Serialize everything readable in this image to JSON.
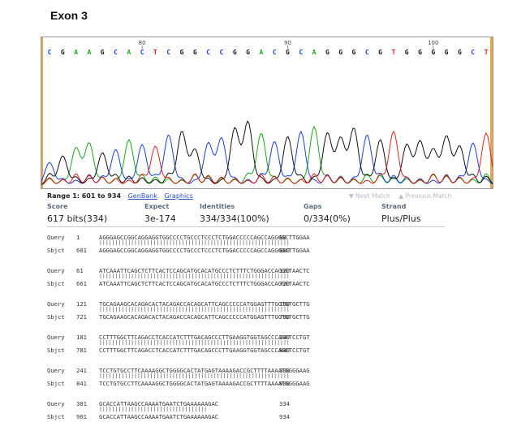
{
  "heading": "Exon 3",
  "trace": {
    "bases": "CGAAGCACTCGGCCGGACGCAGGGCGTGGGGGCT",
    "position_marks": [
      "80",
      "90",
      "100"
    ],
    "colors": {
      "A": "#1aa81a",
      "C": "#1b3fd6",
      "G": "#111111",
      "T": "#e0201a",
      "frame": "#e8a64c"
    }
  },
  "blast": {
    "range_label": "Range 1: 601 to 934",
    "genbank_link": "GenBank",
    "graphics_link": "Graphics",
    "next_match": "▼ Next Match",
    "previous_match": "▲ Previous Match",
    "headers": {
      "score": "Score",
      "expect": "Expect",
      "identities": "Identities",
      "gaps": "Gaps",
      "strand": "Strand"
    },
    "values": {
      "score": "617 bits(334)",
      "expect": "3e-174",
      "identities": "334/334(100%)",
      "gaps": "0/334(0%)",
      "strand": "Plus/Plus"
    }
  },
  "alignment": [
    {
      "q_label": "Query",
      "q_start": "1",
      "q_seq": "AGGGAGCCGGCAGGAGGTGGCCCCTGCCCTCCCTCTGGACCCCCAGCCAGGGGCTTGGAA",
      "q_end": "60",
      "bars": "||||||||||||||||||||||||||||||||||||||||||||||||||||||||||||",
      "s_label": "Sbjct",
      "s_start": "601",
      "s_seq": "AGGGAGCCGGCAGGAGGTGGCCCCTGCCCTCCCTCTGGACCCCCAGCCAGGGGCTTGGAA",
      "s_end": "660"
    },
    {
      "q_label": "Query",
      "q_start": "61",
      "q_seq": "ATCAAATTCAGCTCTTCACTCCAGCATGCACATGCCCTCTTTCTGGGACCAGGCTAACTC",
      "q_end": "120",
      "bars": "||||||||||||||||||||||||||||||||||||||||||||||||||||||||||||",
      "s_label": "Sbjct",
      "s_start": "661",
      "s_seq": "ATCAAATTCAGCTCTTCACTCCAGCATGCACATGCCCTCTTTCTGGGACCAGGCTAACTC",
      "s_end": "720"
    },
    {
      "q_label": "Query",
      "q_start": "121",
      "q_seq": "TGCAGAAGCACAGACACTACAGACCACAGCATTCAGCCCCCATGGAGTTTGGTGTGCTTG",
      "q_end": "180",
      "bars": "||||||||||||||||||||||||||||||||||||||||||||||||||||||||||||",
      "s_label": "Sbjct",
      "s_start": "721",
      "s_seq": "TGCAGAAGCACAGACACTACAGACCACAGCATTCAGCCCCCATGGAGTTTGGTGTGCTTG",
      "s_end": "780"
    },
    {
      "q_label": "Query",
      "q_start": "181",
      "q_seq": "CCTTTGGCTTCAGACCTCACCATCTTTGACAGCCCTTGAAGGTGGTAGCCCAGCTCCTGT",
      "q_end": "240",
      "bars": "||||||||||||||||||||||||||||||||||||||||||||||||||||||||||||",
      "s_label": "Sbjct",
      "s_start": "781",
      "s_seq": "CCTTTGGCTTCAGACCTCACCATCTTTGACAGCCCTTGAAGGTGGTAGCCCAGCTCCTGT",
      "s_end": "840"
    },
    {
      "q_label": "Query",
      "q_start": "241",
      "q_seq": "TCCTGTGCCTTCAAAAGGCTGGGGCACTATGAGTAAAAGACCGCTTTTAAAATGGGGAAG",
      "q_end": "300",
      "bars": "||||||||||||||||||||||||||||||||||||||||||||||||||||||||||||",
      "s_label": "Sbjct",
      "s_start": "841",
      "s_seq": "TCCTGTGCCTTCAAAAGGCTGGGGCACTATGAGTAAAAGACCGCTTTTAAAATGGGGAAG",
      "s_end": "900"
    },
    {
      "q_label": "Query",
      "q_start": "301",
      "q_seq": "GCACCATTAAGCCAAAATGAATCTGAAAAAAGAC",
      "q_end": "334",
      "bars": "||||||||||||||||||||||||||||||||||",
      "s_label": "Sbjct",
      "s_start": "901",
      "s_seq": "GCACCATTAAGCCAAAATGAATCTGAAAAAAGAC",
      "s_end": "934"
    }
  ]
}
